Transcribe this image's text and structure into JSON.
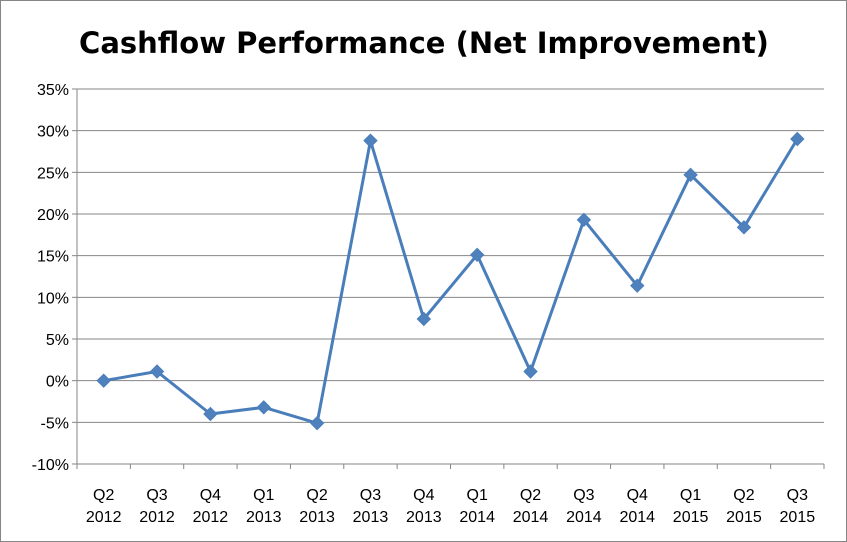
{
  "chart_data": {
    "type": "line",
    "title": "Cashflow Performance (Net Improvement)",
    "xlabel": "",
    "ylabel": "",
    "categories": [
      [
        "Q2",
        "2012"
      ],
      [
        "Q3",
        "2012"
      ],
      [
        "Q4",
        "2012"
      ],
      [
        "Q1",
        "2013"
      ],
      [
        "Q2",
        "2013"
      ],
      [
        "Q3",
        "2013"
      ],
      [
        "Q4",
        "2013"
      ],
      [
        "Q1",
        "2014"
      ],
      [
        "Q2",
        "2014"
      ],
      [
        "Q3",
        "2014"
      ],
      [
        "Q4",
        "2014"
      ],
      [
        "Q1",
        "2015"
      ],
      [
        "Q2",
        "2015"
      ],
      [
        "Q3",
        "2015"
      ]
    ],
    "series": [
      {
        "values": [
          0.0,
          1.1,
          -4.0,
          -3.2,
          -5.1,
          28.8,
          7.4,
          15.1,
          1.1,
          19.3,
          11.4,
          24.7,
          18.4,
          29.0
        ]
      }
    ],
    "yticks": [
      "35%",
      "30%",
      "25%",
      "20%",
      "15%",
      "10%",
      "5%",
      "0%",
      "-5%",
      "-10%"
    ],
    "ylim": [
      -10,
      35
    ],
    "ystep": 5,
    "grid": true,
    "legend": "none",
    "marker": "diamond",
    "line_color": "#4A7EBB",
    "marker_color": "#4F81BD",
    "grid_color": "#868686"
  }
}
